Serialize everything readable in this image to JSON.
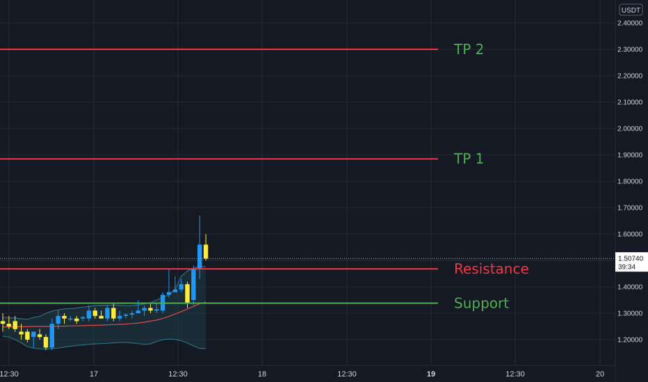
{
  "chart_data": {
    "type": "candlestick",
    "currency": "USDT",
    "ylim": [
      1.13,
      2.43
    ],
    "y_ticks": [
      "2.40000",
      "2.30000",
      "2.20000",
      "2.10000",
      "2.00000",
      "1.90000",
      "1.80000",
      "1.70000",
      "1.60000",
      "1.50000",
      "1.40000",
      "1.30000",
      "1.20000"
    ],
    "x_ticks": [
      {
        "label": "12:30",
        "bold": false
      },
      {
        "label": "17",
        "bold": false
      },
      {
        "label": "12:30",
        "bold": false
      },
      {
        "label": "18",
        "bold": false
      },
      {
        "label": "12:30",
        "bold": false
      },
      {
        "label": "19",
        "bold": true
      },
      {
        "label": "12:30",
        "bold": false
      },
      {
        "label": "20",
        "bold": false
      }
    ],
    "current_price": {
      "label": "1.50740",
      "value": 1.5074,
      "countdown": "39:34"
    },
    "levels": [
      {
        "label": "TP 2",
        "value": 2.3,
        "line_color": "#f23645",
        "text_color": "#4caf50"
      },
      {
        "label": "TP 1",
        "value": 1.885,
        "line_color": "#f23645",
        "text_color": "#4caf50"
      },
      {
        "label": "Resistance",
        "value": 1.468,
        "line_color": "#f23645",
        "text_color": "#f23645"
      },
      {
        "label": "Support",
        "value": 1.338,
        "line_color": "#4caf50",
        "text_color": "#4caf50"
      }
    ],
    "colors": {
      "up": "#2196f3",
      "down": "#ffeb3b",
      "ma": "#e04b4b",
      "band": "#2a7080",
      "background": "#151924"
    },
    "candles": [
      {
        "o": 1.27,
        "h": 1.3,
        "l": 1.23,
        "c": 1.26
      },
      {
        "o": 1.26,
        "h": 1.29,
        "l": 1.24,
        "c": 1.25
      },
      {
        "o": 1.27,
        "h": 1.29,
        "l": 1.23,
        "c": 1.24
      },
      {
        "o": 1.23,
        "h": 1.26,
        "l": 1.2,
        "c": 1.22
      },
      {
        "o": 1.23,
        "h": 1.24,
        "l": 1.19,
        "c": 1.2
      },
      {
        "o": 1.21,
        "h": 1.23,
        "l": 1.17,
        "c": 1.23
      },
      {
        "o": 1.22,
        "h": 1.24,
        "l": 1.2,
        "c": 1.21
      },
      {
        "o": 1.21,
        "h": 1.22,
        "l": 1.16,
        "c": 1.17
      },
      {
        "o": 1.17,
        "h": 1.28,
        "l": 1.16,
        "c": 1.26
      },
      {
        "o": 1.26,
        "h": 1.31,
        "l": 1.24,
        "c": 1.29
      },
      {
        "o": 1.29,
        "h": 1.3,
        "l": 1.26,
        "c": 1.28
      },
      {
        "o": 1.28,
        "h": 1.29,
        "l": 1.27,
        "c": 1.28
      },
      {
        "o": 1.28,
        "h": 1.29,
        "l": 1.26,
        "c": 1.27
      },
      {
        "o": 1.28,
        "h": 1.29,
        "l": 1.27,
        "c": 1.285
      },
      {
        "o": 1.28,
        "h": 1.33,
        "l": 1.27,
        "c": 1.31
      },
      {
        "o": 1.31,
        "h": 1.32,
        "l": 1.28,
        "c": 1.29
      },
      {
        "o": 1.29,
        "h": 1.31,
        "l": 1.28,
        "c": 1.28
      },
      {
        "o": 1.28,
        "h": 1.33,
        "l": 1.27,
        "c": 1.32
      },
      {
        "o": 1.32,
        "h": 1.34,
        "l": 1.27,
        "c": 1.28
      },
      {
        "o": 1.28,
        "h": 1.31,
        "l": 1.27,
        "c": 1.29
      },
      {
        "o": 1.29,
        "h": 1.3,
        "l": 1.28,
        "c": 1.295
      },
      {
        "o": 1.295,
        "h": 1.31,
        "l": 1.28,
        "c": 1.3
      },
      {
        "o": 1.3,
        "h": 1.35,
        "l": 1.3,
        "c": 1.31
      },
      {
        "o": 1.31,
        "h": 1.33,
        "l": 1.29,
        "c": 1.32
      },
      {
        "o": 1.32,
        "h": 1.34,
        "l": 1.3,
        "c": 1.31
      },
      {
        "o": 1.31,
        "h": 1.34,
        "l": 1.3,
        "c": 1.315
      },
      {
        "o": 1.31,
        "h": 1.38,
        "l": 1.3,
        "c": 1.37
      },
      {
        "o": 1.37,
        "h": 1.47,
        "l": 1.36,
        "c": 1.38
      },
      {
        "o": 1.38,
        "h": 1.44,
        "l": 1.38,
        "c": 1.39
      },
      {
        "o": 1.39,
        "h": 1.43,
        "l": 1.38,
        "c": 1.41
      },
      {
        "o": 1.41,
        "h": 1.42,
        "l": 1.32,
        "c": 1.34
      },
      {
        "o": 1.35,
        "h": 1.48,
        "l": 1.33,
        "c": 1.47
      },
      {
        "o": 1.47,
        "h": 1.67,
        "l": 1.43,
        "c": 1.56
      },
      {
        "o": 1.56,
        "h": 1.6,
        "l": 1.5,
        "c": 1.507
      }
    ],
    "ma": [
      1.248,
      1.248,
      1.249,
      1.249,
      1.249,
      1.25,
      1.25,
      1.25,
      1.25,
      1.251,
      1.251,
      1.252,
      1.252,
      1.253,
      1.254,
      1.254,
      1.255,
      1.256,
      1.257,
      1.258,
      1.259,
      1.261,
      1.263,
      1.266,
      1.27,
      1.274,
      1.28,
      1.288,
      1.297,
      1.306,
      1.316,
      1.326,
      1.336,
      1.342
    ],
    "band_upper": [
      1.285,
      1.283,
      1.282,
      1.279,
      1.277,
      1.284,
      1.288,
      1.3,
      1.308,
      1.313,
      1.316,
      1.318,
      1.32,
      1.323,
      1.326,
      1.329,
      1.33,
      1.33,
      1.331,
      1.33,
      1.328,
      1.329,
      1.331,
      1.335,
      1.34,
      1.35,
      1.36,
      1.37,
      1.39,
      1.44,
      1.46,
      1.47,
      1.48,
      1.476
    ],
    "band_lower": [
      1.213,
      1.21,
      1.2,
      1.188,
      1.174,
      1.168,
      1.165,
      1.164,
      1.166,
      1.168,
      1.172,
      1.175,
      1.178,
      1.18,
      1.182,
      1.184,
      1.185,
      1.186,
      1.188,
      1.189,
      1.189,
      1.188,
      1.185,
      1.182,
      1.184,
      1.193,
      1.2,
      1.202,
      1.201,
      1.196,
      1.187,
      1.176,
      1.167,
      1.166
    ]
  }
}
